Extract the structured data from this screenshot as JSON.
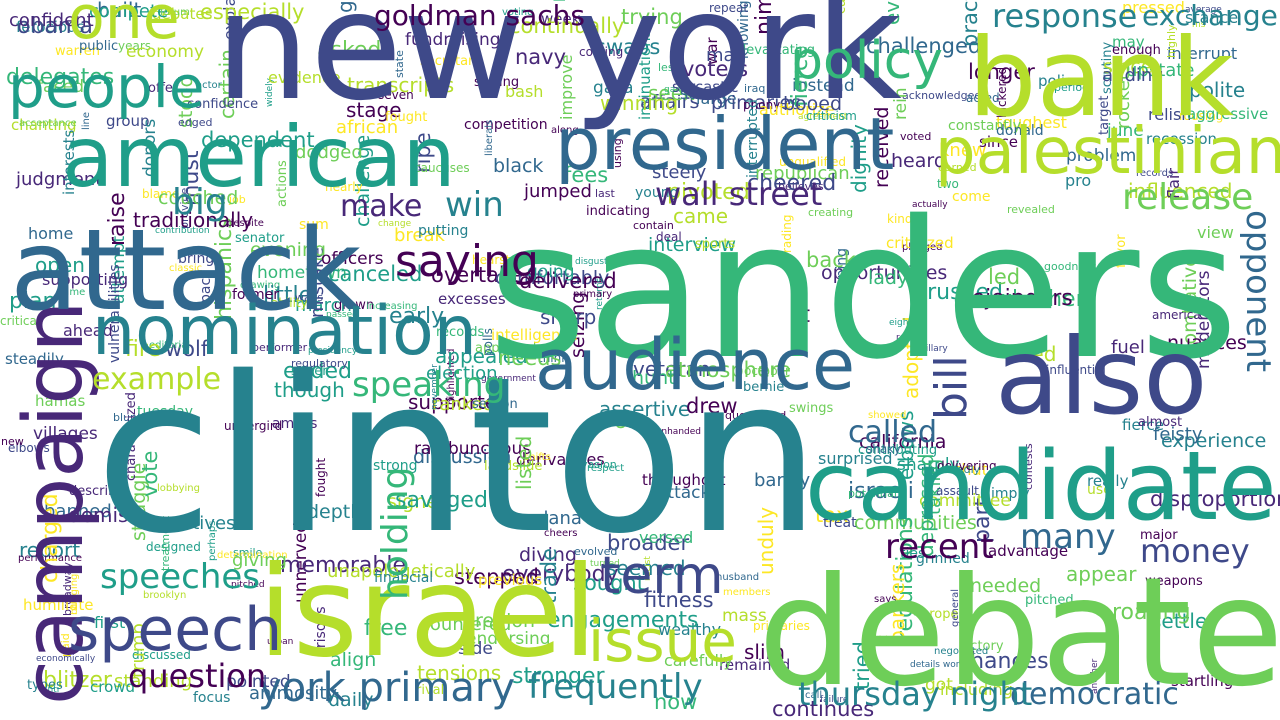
{
  "palette": {
    "dark_purple": "#440154",
    "purple": "#482878",
    "indigo": "#3e4989",
    "blue": "#31688e",
    "teal_blue": "#26828e",
    "teal": "#1f9e89",
    "green_teal": "#35b779",
    "green": "#6ece58",
    "lime": "#b5de2b",
    "yellow": "#fde725"
  },
  "words": [
    {
      "text": "sanders",
      "color": "#35b779"
    },
    {
      "text": "clinton",
      "color": "#26828e"
    },
    {
      "text": "new york",
      "color": "#3e4989"
    },
    {
      "text": "debate",
      "color": "#6ece58"
    },
    {
      "text": "israel",
      "color": "#b5de2b"
    },
    {
      "text": "candidate",
      "color": "#1f9e89"
    },
    {
      "text": "campaign",
      "color": "#482878"
    },
    {
      "text": "attack",
      "color": "#31688e"
    },
    {
      "text": "bank",
      "color": "#b5de2b"
    },
    {
      "text": "american",
      "color": "#1f9e89"
    },
    {
      "text": "president",
      "color": "#31688e"
    },
    {
      "text": "nomination",
      "color": "#26828e"
    },
    {
      "text": "also",
      "color": "#3e4989"
    },
    {
      "text": "audience",
      "color": "#31688e"
    },
    {
      "text": "palestinian",
      "color": "#b5de2b"
    },
    {
      "text": "people",
      "color": "#1f9e89"
    },
    {
      "text": "speech",
      "color": "#3e4989"
    },
    {
      "text": "one",
      "color": "#b5de2b"
    },
    {
      "text": "policy",
      "color": "#35b779"
    },
    {
      "text": "issue",
      "color": "#b5de2b"
    },
    {
      "text": "term",
      "color": "#3e4989"
    },
    {
      "text": "york primary",
      "color": "#31688e"
    },
    {
      "text": "speeches",
      "color": "#1f9e89"
    },
    {
      "text": "question",
      "color": "#440154"
    },
    {
      "text": "speaking",
      "color": "#35b779"
    },
    {
      "text": "saying",
      "color": "#440154"
    },
    {
      "text": "release",
      "color": "#6ece58"
    },
    {
      "text": "money",
      "color": "#3e4989"
    },
    {
      "text": "democratic",
      "color": "#31688e"
    },
    {
      "text": "frequently",
      "color": "#26828e"
    },
    {
      "text": "thursday night",
      "color": "#26828e"
    },
    {
      "text": "many",
      "color": "#31688e"
    },
    {
      "text": "recent",
      "color": "#440154"
    },
    {
      "text": "wall street",
      "color": "#482878"
    },
    {
      "text": "opponent",
      "color": "#31688e"
    },
    {
      "text": "bill",
      "color": "#3e4989"
    },
    {
      "text": "holding",
      "color": "#35b779"
    },
    {
      "text": "response",
      "color": "#26828e"
    },
    {
      "text": "exchange",
      "color": "#26828e"
    },
    {
      "text": "goldman sachs",
      "color": "#440154"
    },
    {
      "text": "make",
      "color": "#482878"
    },
    {
      "text": "win",
      "color": "#26828e"
    },
    {
      "text": "big",
      "color": "#26828e"
    },
    {
      "text": "example",
      "color": "#b5de2b"
    },
    {
      "text": "called",
      "color": "#31688e"
    },
    {
      "text": "candidate2",
      "color": "#1f9e89"
    }
  ],
  "small_words": [
    "sarcastic",
    "first",
    "delivering",
    "criticism",
    "paid",
    "recession",
    "african",
    "deal",
    "secretary",
    "fees",
    "booed",
    "crime",
    "early",
    "sharp",
    "couched",
    "roaring",
    "home",
    "treat",
    "november",
    "engagements",
    "general",
    "potential",
    "bickered",
    "racist",
    "interests",
    "actions",
    "new",
    "primary",
    "criticized",
    "officers",
    "line",
    "going",
    "bash",
    "really",
    "needs",
    "now",
    "crowd",
    "ties",
    "challenged",
    "fierce",
    "contain",
    "supporting",
    "kind",
    "donald",
    "voters",
    "polls",
    "eight",
    "liberals",
    "says",
    "caucuses",
    "primaries",
    "rejoinders",
    "showed",
    "fought",
    "dignity",
    "feisty",
    "street",
    "hunt",
    "classic",
    "trade",
    "ripe",
    "rival",
    "ahead",
    "super",
    "support",
    "peace",
    "increasing",
    "especially",
    "adopted",
    "devastating",
    "almost",
    "judgment",
    "presidency",
    "raise",
    "state",
    "financial",
    "back",
    "two",
    "police",
    "assault",
    "cheers",
    "critical",
    "returns",
    "listed",
    "chances",
    "use",
    "constantly",
    "rambunctious",
    "vulnerabilities",
    "cheered",
    "shaky",
    "forum",
    "confident",
    "obama",
    "donors",
    "hamas",
    "free",
    "contribution",
    "got",
    "creating",
    "sum",
    "change",
    "evening",
    "came",
    "elbows",
    "polite",
    "bring",
    "edged",
    "characterized",
    "bluntly",
    "members",
    "authorize",
    "coming",
    "giving",
    "swings",
    "region",
    "delegates",
    "asked",
    "adding",
    "brooklyn",
    "throughout",
    "treatment",
    "iraq",
    "atmosphere",
    "offer",
    "repeat",
    "landslide",
    "highly",
    "tuesday",
    "dependent",
    "depressed",
    "align",
    "rockets",
    "sports",
    "confidence",
    "taking",
    "seemed",
    "revealed",
    "negotiated",
    "interrupted",
    "intelligence",
    "charged",
    "performance",
    "major",
    "bernie",
    "hillary",
    "steely",
    "phony",
    "america",
    "daily",
    "vote",
    "tax",
    "evidence",
    "senator",
    "plan",
    "invasion",
    "upstate",
    "villages",
    "executives",
    "navy",
    "led",
    "ability",
    "pledged",
    "sought",
    "appear",
    "stance",
    "compete",
    "pointed",
    "widely",
    "cast",
    "animosity",
    "fitness",
    "stronger",
    "economically",
    "acceptance",
    "countered",
    "bankers",
    "heard",
    "wealthy",
    "voting",
    "practices",
    "economy",
    "must",
    "unapologetically",
    "fire",
    "humiliate",
    "regulatory",
    "republican",
    "struggle",
    "come",
    "crushed",
    "winning",
    "chanting",
    "map",
    "groundwork",
    "flair",
    "despite",
    "veteran",
    "committee",
    "unqualified",
    "savaged",
    "seizing",
    "broadway",
    "repeatedly",
    "determination",
    "disgust",
    "fuel",
    "experience",
    "report",
    "pro",
    "since",
    "rein",
    "evading",
    "blame",
    "sharply",
    "carefully",
    "believes",
    "traditionally",
    "continually",
    "primaries",
    "target",
    "delivered",
    "anti",
    "ways",
    "instead",
    "bringing",
    "explained",
    "job",
    "regulations",
    "since",
    "trump",
    "certain",
    "urban",
    "last",
    "dana",
    "indicating",
    "jumped",
    "barely",
    "hoping",
    "ferocious",
    "longer",
    "favor",
    "strong",
    "public",
    "nearly",
    "black",
    "respect",
    "acted",
    "previous",
    "focus",
    "knowing",
    "election",
    "actor",
    "knew",
    "excesses",
    "large",
    "season",
    "oh",
    "gaza",
    "young",
    "period",
    "aggressive",
    "canceled",
    "less",
    "provide",
    "tried",
    "questioned",
    "demise",
    "june",
    "lobbying",
    "cease",
    "ms",
    "performer",
    "think",
    "elbows",
    "enough",
    "years",
    "warren",
    "appealed",
    "toughest",
    "former",
    "mass",
    "friday",
    "versed",
    "received",
    "goodness",
    "stood",
    "advantage",
    "discussion",
    "designed",
    "nuances",
    "memorable",
    "evenhanded",
    "mistake",
    "slim",
    "evolved",
    "grinned",
    "war",
    "open",
    "drew",
    "little",
    "passed",
    "proper",
    "remained",
    "transcripts",
    "diving",
    "part",
    "pac",
    "parading",
    "pressed",
    "combative",
    "broader",
    "describe",
    "whether",
    "built",
    "prisons",
    "earned",
    "along",
    "unduly",
    "may",
    "lady",
    "march",
    "tensions",
    "disproportionately",
    "pitched",
    "debates",
    "dodged",
    "gang",
    "putting",
    "call",
    "comfortably",
    "standing",
    "seven",
    "contests",
    "week",
    "fought",
    "relish",
    "assertive",
    "husband",
    "needed",
    "signed",
    "government",
    "turned",
    "steadily",
    "details words",
    "group",
    "nimble",
    "acknowledged",
    "failure",
    "grown",
    "improve",
    "overtake",
    "banned",
    "rousing",
    "drawing",
    "average",
    "competition",
    "stage",
    "hometown",
    "actually",
    "israeli",
    "victory",
    "undergird",
    "seek",
    "imply",
    "voted",
    "influential",
    "stepped",
    "affairs",
    "including",
    "interview",
    "october",
    "ranked",
    "hearst",
    "attempt",
    "opportunities",
    "types",
    "blitzer",
    "cited",
    "using",
    "insinuations",
    "another",
    "influenced",
    "agreement",
    "startling",
    "setting",
    "trying",
    "editorial",
    "settle",
    "perhaps",
    "shifts",
    "contributing",
    "california",
    "moderators",
    "retort",
    "though",
    "problem",
    "wolf",
    "shut",
    "smile",
    "reached",
    "swaps",
    "view",
    "break",
    "everybody",
    "side",
    "challenge",
    "continues",
    "derivatives",
    "weapons",
    "depth",
    "amass",
    "endorsing",
    "fundraising",
    "pitched",
    "surprised",
    "interrupt",
    "approved",
    "scrutiny",
    "unnerved",
    "fierce",
    "hispanics",
    "ended",
    "pivoted",
    "attack",
    "faced",
    "supported",
    "discussed",
    "communities",
    "highlighted",
    "records",
    "records"
  ]
}
